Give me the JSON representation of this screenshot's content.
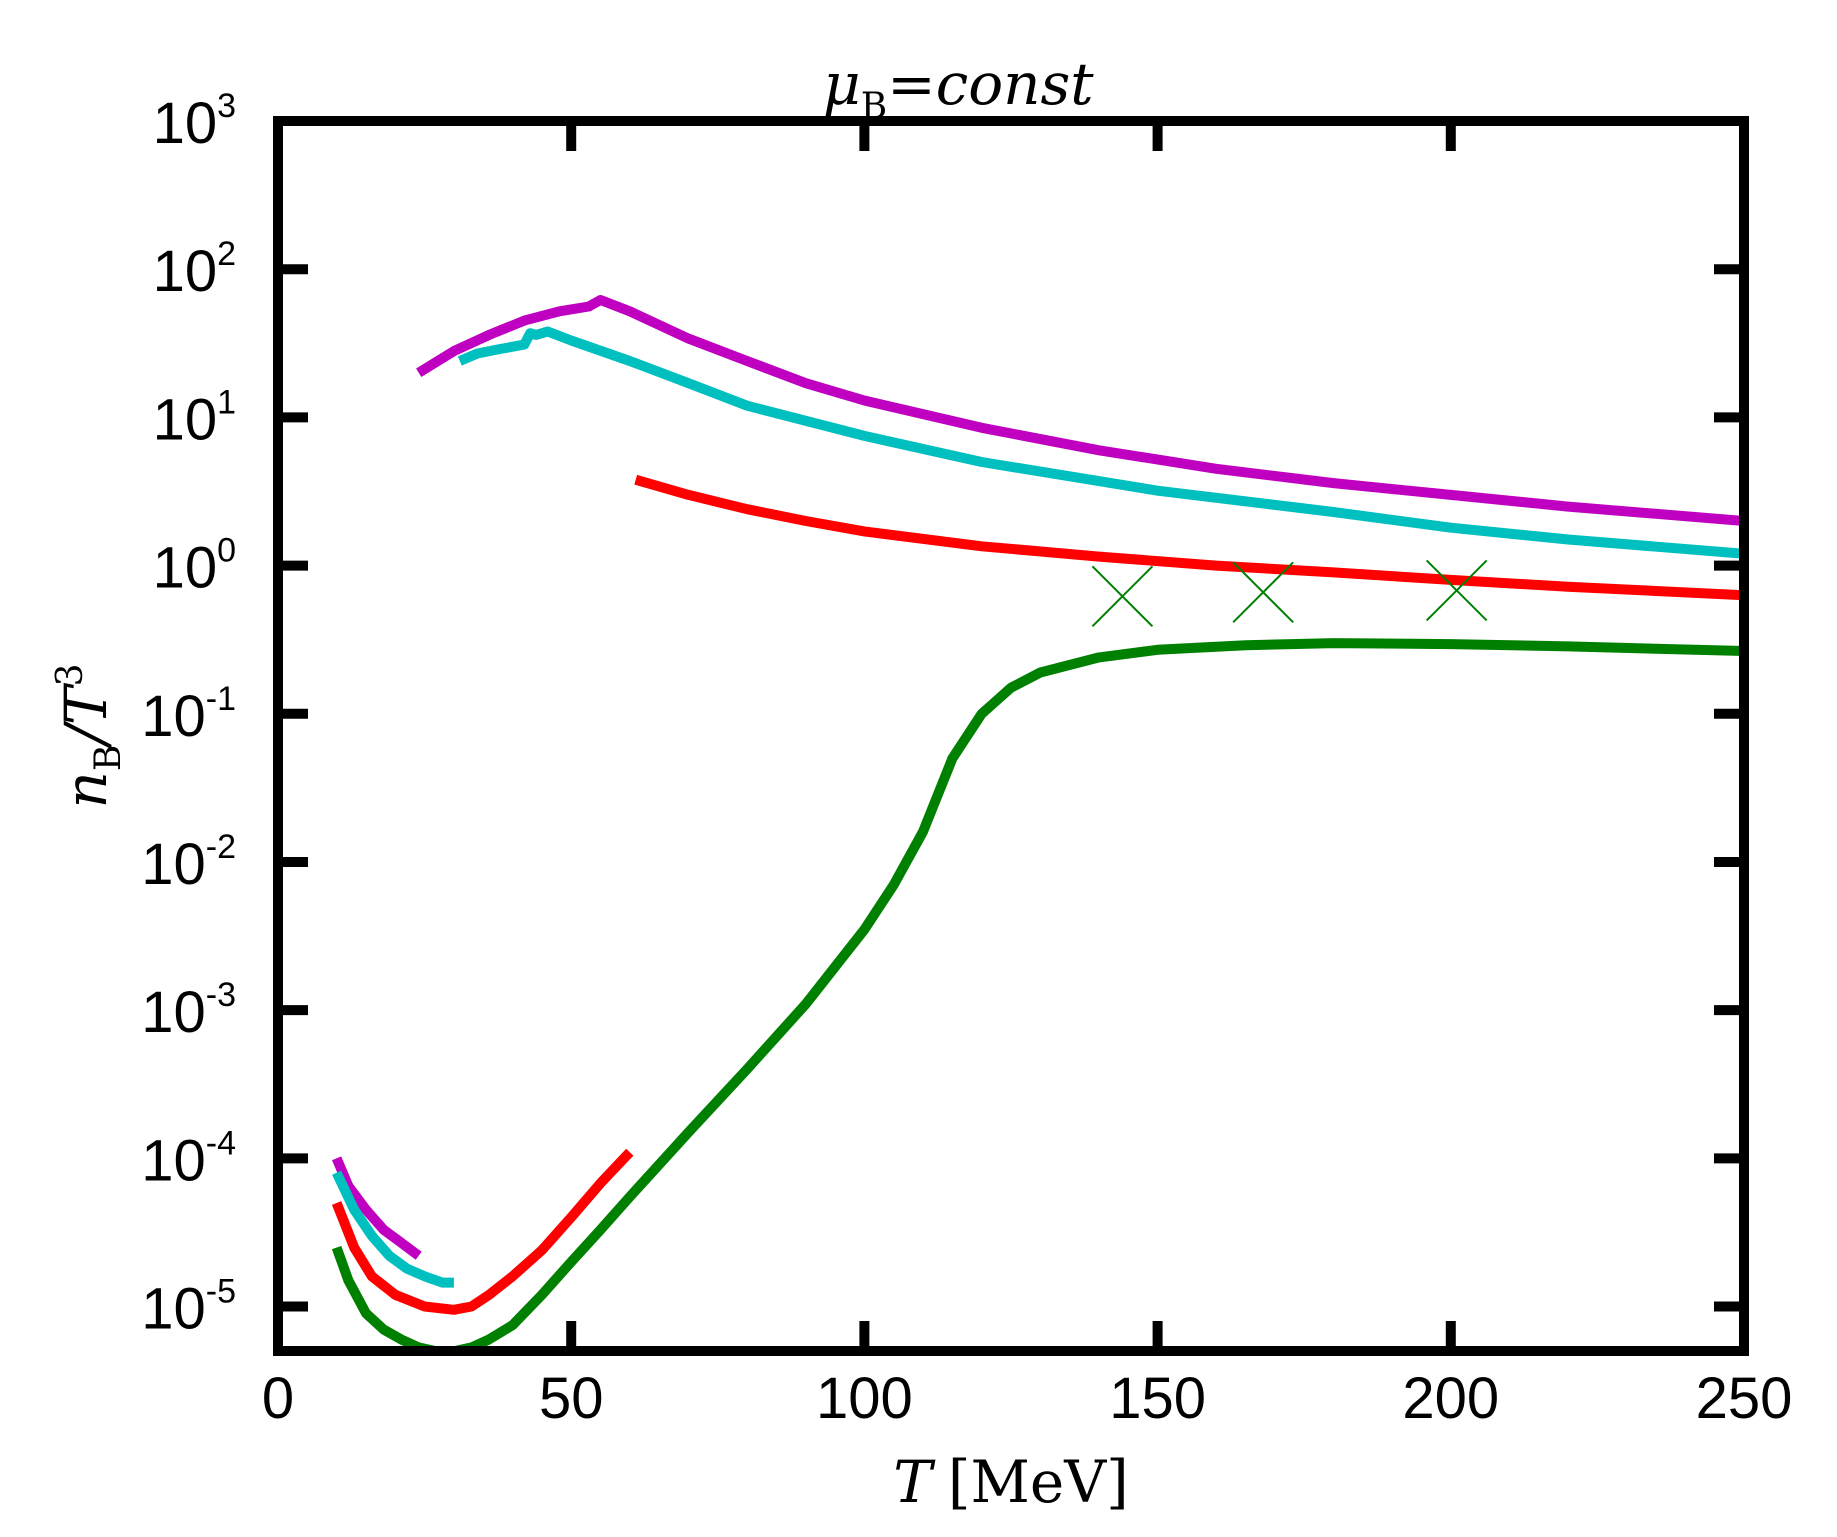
{
  "chart_data": {
    "type": "line",
    "title": {
      "symbol": "μ",
      "sub": "B",
      "rest": "=const"
    },
    "xlabel": {
      "symbol": "T",
      "unit": "[MeV]"
    },
    "ylabel": {
      "n": "n",
      "sub": "B",
      "rest": "/T",
      "sup": "3"
    },
    "xlim": [
      0,
      250
    ],
    "ylim_log10": [
      -5.3,
      3
    ],
    "x_ticks": [
      {
        "value": 0,
        "label": "0"
      },
      {
        "value": 50,
        "label": "50"
      },
      {
        "value": 100,
        "label": "100"
      },
      {
        "value": 150,
        "label": "150"
      },
      {
        "value": 200,
        "label": "200"
      },
      {
        "value": 250,
        "label": "250"
      }
    ],
    "y_ticks": [
      {
        "exp": 3,
        "base": "10",
        "sup": "3"
      },
      {
        "exp": 2,
        "base": "10",
        "sup": "2"
      },
      {
        "exp": 1,
        "base": "10",
        "sup": "1"
      },
      {
        "exp": 0,
        "base": "10",
        "sup": "0"
      },
      {
        "exp": -1,
        "base": "10",
        "sup": "-1"
      },
      {
        "exp": -2,
        "base": "10",
        "sup": "-2"
      },
      {
        "exp": -3,
        "base": "10",
        "sup": "-3"
      },
      {
        "exp": -4,
        "base": "10",
        "sup": "-4"
      },
      {
        "exp": -5,
        "base": "10",
        "sup": "-5"
      }
    ],
    "series": [
      {
        "name": "magenta",
        "color": "#c000c0",
        "segments": [
          {
            "x": [
              10,
              12,
              15,
              18,
              21,
              24
            ],
            "y": [
              0.0001,
              6.5e-05,
              4.5e-05,
              3.3e-05,
              2.7e-05,
              2.2e-05
            ]
          },
          {
            "x": [
              24,
              30,
              36,
              42,
              48,
              53,
              55,
              60,
              70,
              80,
              90,
              100,
              120,
              140,
              160,
              180,
              200,
              220,
              250
            ],
            "y": [
              20,
              28,
              36,
              45,
              52,
              56,
              62,
              52,
              34,
              24,
              17,
              13,
              8.5,
              6.0,
              4.5,
              3.6,
              3.0,
              2.5,
              2.0
            ]
          }
        ]
      },
      {
        "name": "cyan",
        "color": "#00bfbf",
        "segments": [
          {
            "x": [
              10,
              13,
              16,
              19,
              22,
              25,
              28,
              30
            ],
            "y": [
              8e-05,
              4.5e-05,
              3e-05,
              2.2e-05,
              1.8e-05,
              1.6e-05,
              1.45e-05,
              1.45e-05
            ]
          },
          {
            "x": [
              31,
              34,
              38,
              42,
              43,
              44,
              46,
              50,
              60,
              70,
              80,
              100,
              120,
              150,
              180,
              200,
              220,
              250
            ],
            "y": [
              24,
              27,
              29,
              31,
              37,
              36,
              38,
              33,
              24,
              17,
              12,
              7.5,
              5.0,
              3.2,
              2.3,
              1.8,
              1.5,
              1.2
            ]
          }
        ]
      },
      {
        "name": "red",
        "color": "#ff0000",
        "segments": [
          {
            "x": [
              10,
              13,
              16,
              20,
              25,
              30,
              33,
              36,
              40,
              45,
              50,
              55,
              60
            ],
            "y": [
              5e-05,
              2.5e-05,
              1.6e-05,
              1.2e-05,
              1e-05,
              9.5e-06,
              1e-05,
              1.2e-05,
              1.6e-05,
              2.4e-05,
              4e-05,
              6.8e-05,
              0.00011
            ]
          },
          {
            "x": [
              61,
              70,
              80,
              90,
              100,
              120,
              140,
              160,
              180,
              200,
              220,
              250
            ],
            "y": [
              3.8,
              3.0,
              2.4,
              2.0,
              1.7,
              1.35,
              1.15,
              1.0,
              0.9,
              0.8,
              0.72,
              0.63
            ]
          }
        ]
      },
      {
        "name": "green",
        "color": "#008000",
        "segments": [
          {
            "x": [
              10,
              12,
              15,
              18,
              21,
              24,
              27,
              30,
              33,
              36,
              40,
              45,
              50,
              55,
              60,
              70,
              80,
              90,
              100,
              105,
              110,
              115,
              120,
              125,
              130,
              140,
              150,
              165,
              180,
              200,
              220,
              250
            ],
            "y": [
              2.5e-05,
              1.5e-05,
              9e-06,
              7e-06,
              6e-06,
              5.3e-06,
              5e-06,
              5e-06,
              5.3e-06,
              6e-06,
              7.5e-06,
              1.2e-05,
              2e-05,
              3.3e-05,
              5.5e-05,
              0.00015,
              0.0004,
              0.0011,
              0.0035,
              0.007,
              0.016,
              0.05,
              0.1,
              0.15,
              0.19,
              0.24,
              0.27,
              0.29,
              0.3,
              0.295,
              0.285,
              0.265
            ]
          }
        ]
      }
    ],
    "markers": [
      {
        "name": "lattice-point",
        "color": "#008000",
        "symbol": "x",
        "points": [
          {
            "x": 144,
            "y": 0.62
          },
          {
            "x": 168,
            "y": 0.66
          },
          {
            "x": 201,
            "y": 0.68
          }
        ]
      }
    ]
  }
}
